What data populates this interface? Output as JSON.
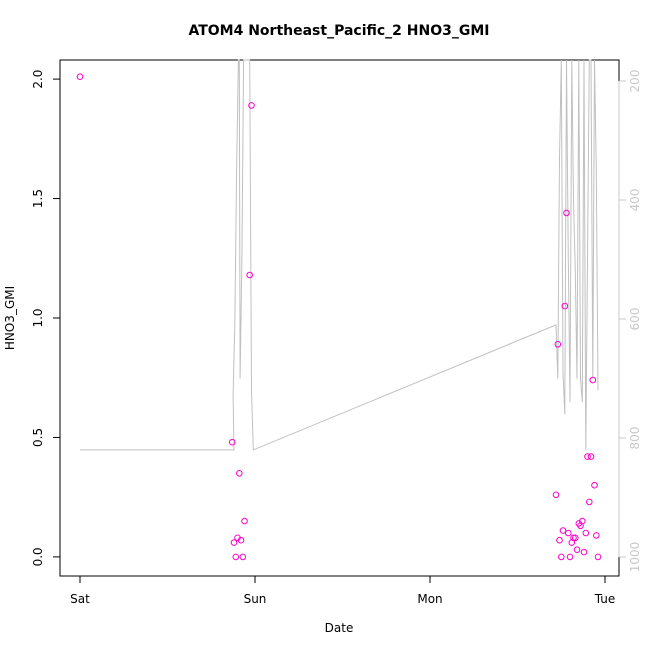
{
  "chart_data": {
    "type": "scatter",
    "title": "ATOM4 Northeast_Pacific_2 HNO3_GMI",
    "xlabel": "Date",
    "ylabel": "HNO3_GMI",
    "xlim": [
      0,
      3
    ],
    "ylim": [
      -0.08,
      2.08
    ],
    "x_ticks": [
      {
        "value": 0,
        "label": "Sat"
      },
      {
        "value": 1,
        "label": "Sun"
      },
      {
        "value": 2,
        "label": "Mon"
      },
      {
        "value": 3,
        "label": "Tue"
      }
    ],
    "y_ticks": [
      {
        "value": 0.0,
        "label": "0.0"
      },
      {
        "value": 0.5,
        "label": "0.5"
      },
      {
        "value": 1.0,
        "label": "1.0"
      },
      {
        "value": 1.5,
        "label": "1.5"
      },
      {
        "value": 2.0,
        "label": "2.0"
      }
    ],
    "y2_ticks": [
      {
        "value": 200,
        "label": "200"
      },
      {
        "value": 400,
        "label": "400"
      },
      {
        "value": 600,
        "label": "600"
      },
      {
        "value": 800,
        "label": "800"
      },
      {
        "value": 1000,
        "label": "1000"
      }
    ],
    "y2lim": [
      1020,
      150
    ],
    "colors": {
      "points": "#ff00cc",
      "line": "#c0c0c0"
    },
    "series": [
      {
        "type": "scatter",
        "x": [
          0.0,
          0.87,
          0.88,
          0.89,
          0.9,
          0.91,
          0.92,
          0.93,
          0.94,
          0.97,
          0.98,
          2.72,
          2.73,
          2.74,
          2.75,
          2.76,
          2.77,
          2.78,
          2.79,
          2.8,
          2.81,
          2.82,
          2.83,
          2.84,
          2.85,
          2.86,
          2.87,
          2.88,
          2.89,
          2.9,
          2.91,
          2.92,
          2.93,
          2.94,
          2.95,
          2.96
        ],
        "y": [
          2.01,
          0.48,
          0.06,
          0.0,
          0.08,
          0.35,
          0.07,
          0.0,
          0.15,
          1.18,
          1.89,
          0.26,
          0.89,
          0.07,
          0.0,
          0.11,
          1.05,
          1.44,
          0.1,
          0.0,
          0.06,
          0.08,
          0.08,
          0.03,
          0.14,
          0.13,
          0.15,
          0.02,
          0.1,
          0.42,
          0.23,
          0.42,
          0.74,
          0.3,
          0.09,
          0.0
        ]
      },
      {
        "type": "line",
        "axis": "right",
        "x": [
          0.0,
          0.88,
          0.875,
          0.885,
          0.895,
          0.905,
          0.91,
          0.915,
          0.925,
          0.935,
          0.97,
          0.98,
          0.99,
          2.72,
          2.73,
          2.74,
          2.75,
          2.76,
          2.77,
          2.78,
          2.79,
          2.8,
          2.81,
          2.82,
          2.83,
          2.84,
          2.85,
          2.86,
          2.87,
          2.88,
          2.89,
          2.9,
          2.91,
          2.92,
          2.93,
          2.94,
          2.95,
          2.96
        ],
        "y": [
          820,
          820,
          730,
          600,
          350,
          150,
          150,
          700,
          500,
          150,
          150,
          720,
          820,
          610,
          700,
          330,
          150,
          690,
          760,
          150,
          500,
          740,
          150,
          400,
          520,
          700,
          150,
          700,
          740,
          150,
          820,
          500,
          150,
          150,
          700,
          150,
          350,
          720
        ]
      }
    ]
  }
}
